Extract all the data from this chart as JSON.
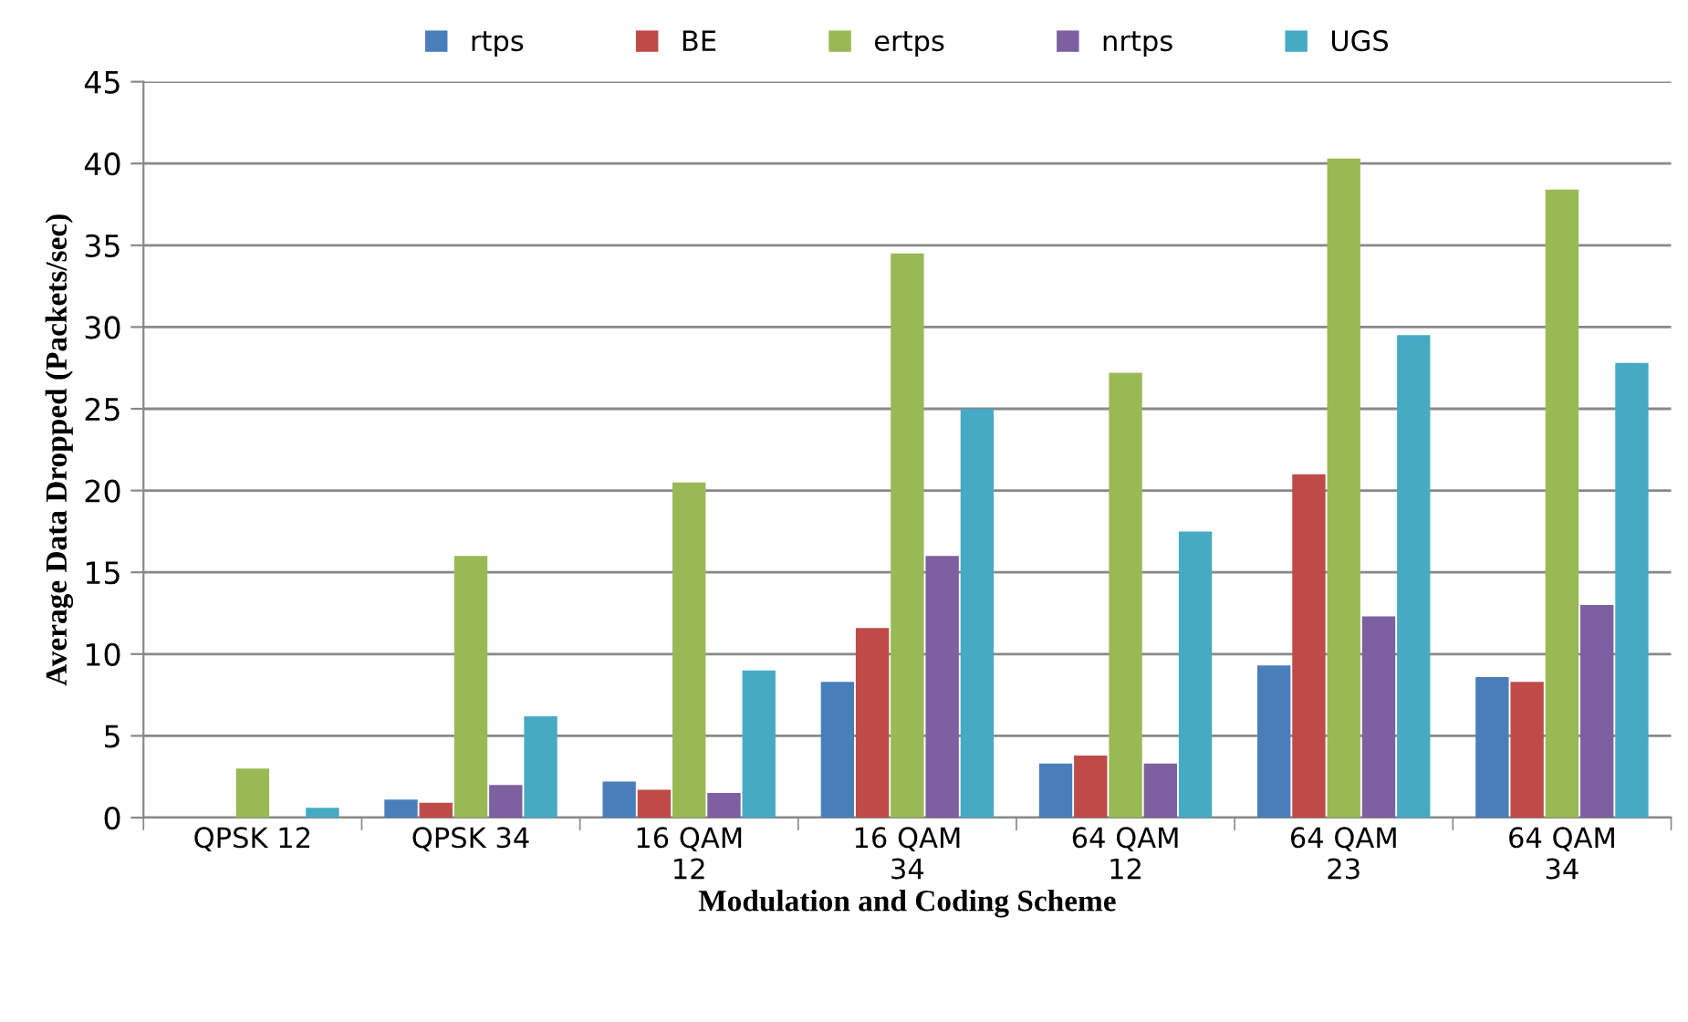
{
  "chart_data": {
    "type": "bar",
    "xlabel": "Modulation and Coding Scheme",
    "ylabel": "Average Data Dropped (Packets/sec)",
    "categories": [
      "QPSK 12",
      "QPSK 34",
      "16 QAM\n12",
      "16 QAM\n34",
      "64 QAM\n12",
      "64 QAM\n23",
      "64 QAM\n34"
    ],
    "series": [
      {
        "name": "rtps",
        "color": "#4a7ebb",
        "values": [
          0,
          1.1,
          2.2,
          8.3,
          3.3,
          9.3,
          8.6
        ]
      },
      {
        "name": "BE",
        "color": "#be4b48",
        "values": [
          0,
          0.9,
          1.7,
          11.6,
          3.8,
          21,
          8.3
        ]
      },
      {
        "name": "ertps",
        "color": "#98b954",
        "values": [
          3,
          16,
          20.5,
          34.5,
          27.2,
          40.3,
          38.4
        ]
      },
      {
        "name": "nrtps",
        "color": "#7d60a0",
        "values": [
          0,
          2,
          1.5,
          16,
          3.3,
          12.3,
          13
        ]
      },
      {
        "name": "UGS",
        "color": "#46aac5",
        "values": [
          0.6,
          6.2,
          9,
          25,
          17.5,
          29.5,
          27.8
        ]
      }
    ],
    "ylim": [
      0,
      45
    ],
    "yticks": [
      0,
      5,
      10,
      15,
      20,
      25,
      30,
      35,
      40,
      45
    ],
    "grid": "y",
    "legend": "top"
  }
}
